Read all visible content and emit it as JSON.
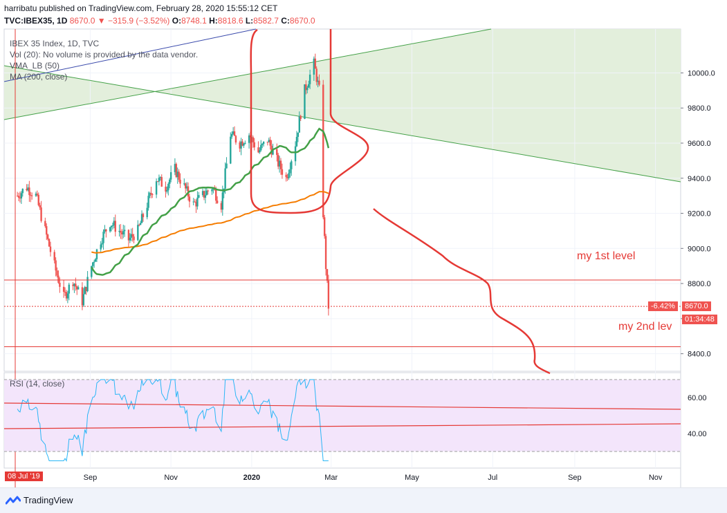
{
  "header": {
    "line1": "harribatu published on TradingView.com, February 28, 2020 15:55:12 CET",
    "symbol": "TVC:IBEX35, 1D",
    "last": "8670.0",
    "change": "−315.9 (−3.52%)",
    "o_label": "O:",
    "o": "8748.1",
    "h_label": "H:",
    "h": "8818.6",
    "l_label": "L:",
    "l": "8582.7",
    "c_label": "C:",
    "c": "8670.0"
  },
  "legend": {
    "title": "IBEX 35 Index, 1D, TVC",
    "vol": "Vol (20): No volume is provided by the data vendor.",
    "vma": "VMA_LB (50)",
    "ma": "MA (200, close)",
    "rsi": "RSI (14, close)"
  },
  "annotations": {
    "level1": "my 1st level",
    "level2": "my 2nd lev"
  },
  "badges": {
    "pct": "-6.42%",
    "price": "8670.0",
    "timer": "01:34:48",
    "date": "08 Jul '19"
  },
  "footer": {
    "brand": "TradingView"
  },
  "colors": {
    "up": "#26a69a",
    "down": "#ef5350",
    "accent_red": "#e53935",
    "rsi_line": "#2196f3",
    "rsi_band": "#f3e5fb",
    "fill_green": "#e3efdc"
  },
  "chart_data": {
    "type": "candlestick",
    "title": "IBEX 35 Index, 1D, TVC",
    "y_ticks": [
      8400,
      8600,
      8800,
      9000,
      9200,
      9400,
      9600,
      9800,
      10000
    ],
    "ylim": [
      8300,
      10250
    ],
    "x_ticks": [
      "Sep",
      "Nov",
      "2020",
      "Mar",
      "May",
      "Jul",
      "Sep",
      "Nov"
    ],
    "levels": {
      "level1": 8820,
      "level2": 8440,
      "last": 8670
    },
    "close_path": [
      [
        "2019-07-08",
        9300
      ],
      [
        "2019-07-15",
        9350
      ],
      [
        "2019-07-22",
        9300
      ],
      [
        "2019-07-29",
        9100
      ],
      [
        "2019-08-05",
        8900
      ],
      [
        "2019-08-12",
        8720
      ],
      [
        "2019-08-19",
        8820
      ],
      [
        "2019-08-26",
        8700
      ],
      [
        "2019-09-02",
        8900
      ],
      [
        "2019-09-09",
        9050
      ],
      [
        "2019-09-16",
        9150
      ],
      [
        "2019-09-23",
        9100
      ],
      [
        "2019-09-30",
        9050
      ],
      [
        "2019-10-07",
        9100
      ],
      [
        "2019-10-14",
        9250
      ],
      [
        "2019-10-21",
        9400
      ],
      [
        "2019-10-28",
        9350
      ],
      [
        "2019-11-04",
        9450
      ],
      [
        "2019-11-11",
        9350
      ],
      [
        "2019-11-18",
        9250
      ],
      [
        "2019-11-25",
        9300
      ],
      [
        "2019-12-02",
        9350
      ],
      [
        "2019-12-09",
        9250
      ],
      [
        "2019-12-16",
        9650
      ],
      [
        "2019-12-23",
        9600
      ],
      [
        "2019-12-30",
        9650
      ],
      [
        "2020-01-06",
        9550
      ],
      [
        "2020-01-13",
        9620
      ],
      [
        "2020-01-20",
        9500
      ],
      [
        "2020-01-27",
        9400
      ],
      [
        "2020-02-03",
        9600
      ],
      [
        "2020-02-10",
        9900
      ],
      [
        "2020-02-17",
        10050
      ],
      [
        "2020-02-21",
        9900
      ],
      [
        "2020-02-24",
        9200
      ],
      [
        "2020-02-26",
        8900
      ],
      [
        "2020-02-28",
        8670
      ]
    ],
    "series": [
      {
        "name": "MA (200, close)"
      },
      {
        "name": "VMA_LB (50)"
      },
      {
        "name": "RSI (14, close)",
        "y_ticks": [
          40,
          60
        ],
        "bands": [
          30,
          70
        ]
      }
    ]
  }
}
